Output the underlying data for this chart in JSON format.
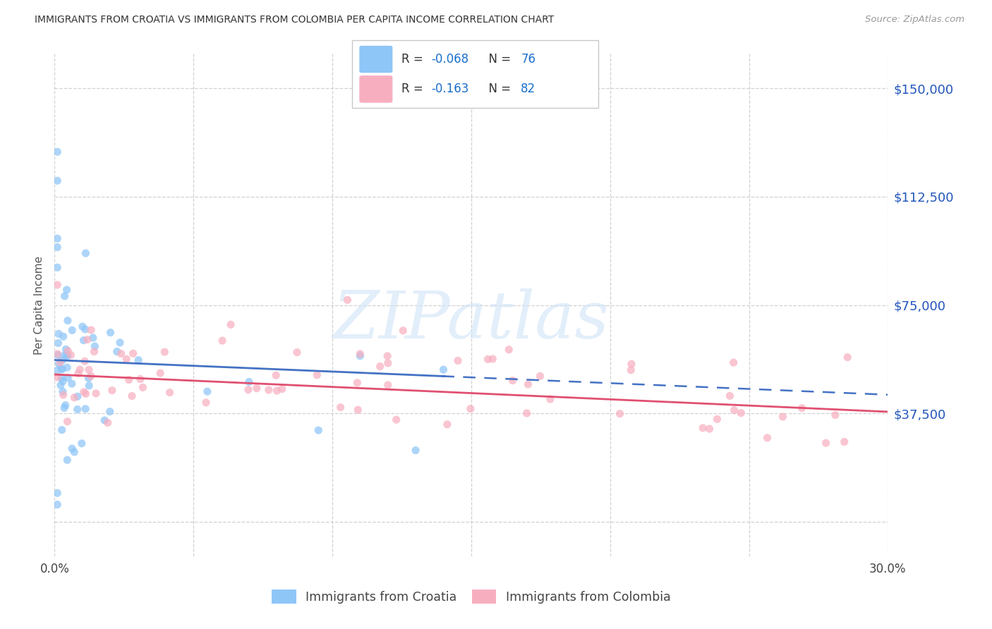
{
  "title": "IMMIGRANTS FROM CROATIA VS IMMIGRANTS FROM COLOMBIA PER CAPITA INCOME CORRELATION CHART",
  "source": "Source: ZipAtlas.com",
  "ylabel": "Per Capita Income",
  "xmin": 0.0,
  "xmax": 0.3,
  "ymin": -12000,
  "ymax": 162000,
  "ytick_vals": [
    0,
    37500,
    75000,
    112500,
    150000
  ],
  "ytick_labels": [
    "",
    "$37,500",
    "$75,000",
    "$112,500",
    "$150,000"
  ],
  "xtick_vals": [
    0.0,
    0.05,
    0.1,
    0.15,
    0.2,
    0.25,
    0.3
  ],
  "xtick_labels": [
    "0.0%",
    "",
    "",
    "",
    "",
    "",
    "30.0%"
  ],
  "croatia_color": "#8ec6f8",
  "colombia_color": "#f7afc0",
  "trendline_croatia_color": "#4472C4",
  "trendline_colombia_color": "#e05070",
  "croatia_R": -0.068,
  "croatia_N": 76,
  "colombia_R": -0.163,
  "colombia_N": 82,
  "legend_R_color": "#1a6fcc",
  "legend_N_color": "#1a6fcc",
  "legend_colombia_R_color": "#1a6fcc",
  "legend_colombia_N_color": "#1a6fcc",
  "watermark": "ZIPatlas",
  "legend_label_croatia": "Immigrants from Croatia",
  "legend_label_colombia": "Immigrants from Colombia"
}
